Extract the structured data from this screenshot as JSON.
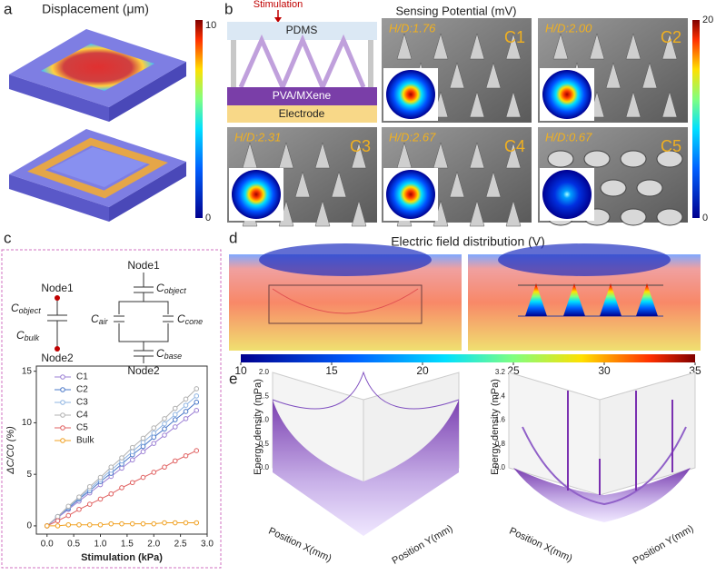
{
  "panel_a": {
    "label": "a",
    "title": "Displacement (μm)",
    "colorbar_max": "10",
    "colorbar_min": "0"
  },
  "panel_b": {
    "label": "b",
    "stimulation": "Stimulation",
    "layers": [
      "PDMS",
      "PVA/MXene",
      "Electrode"
    ],
    "title": "Sensing Potential (mV)",
    "colorbar_max": "20",
    "colorbar_min": "0",
    "images": [
      {
        "hd": "H/D:1.76",
        "name": "C1"
      },
      {
        "hd": "H/D:2.00",
        "name": "C2"
      },
      {
        "hd": "H/D:2.31",
        "name": "C3"
      },
      {
        "hd": "H/D:2.67",
        "name": "C4"
      },
      {
        "hd": "H/D:0.67",
        "name": "C5"
      }
    ]
  },
  "panel_c": {
    "label": "c",
    "node1": "Node1",
    "node2": "Node2",
    "cap": "C",
    "subs": {
      "object": "object",
      "bulk": "bulk",
      "air": "air",
      "cone": "cone",
      "base": "base"
    }
  },
  "panel_d": {
    "label": "d",
    "title": "Electric field distribution (V)",
    "colorbar_ticks": [
      10,
      15,
      20,
      25,
      30,
      35
    ]
  },
  "panel_e": {
    "label": "e",
    "zlabel": "Energy density (mPa)",
    "xlabel": "Position X(mm)",
    "ylabel": "Position Y(mm)",
    "left_zticks": [
      "0.0",
      "0.5",
      "1.0",
      "1.5",
      "2.0"
    ],
    "right_zticks": [
      "0.0",
      "0.8",
      "1.6",
      "2.4",
      "3.2"
    ]
  },
  "chart_data": {
    "type": "line",
    "xlabel": "Stimulation (kPa)",
    "ylabel": "ΔC/C0 (%)",
    "x": [
      0,
      0.2,
      0.4,
      0.6,
      0.8,
      1.0,
      1.2,
      1.4,
      1.6,
      1.8,
      2.0,
      2.2,
      2.4,
      2.6,
      2.8
    ],
    "xlim": [
      -0.2,
      3.0
    ],
    "xticks": [
      {
        "value": 0,
        "label": "0.0"
      },
      0.5,
      {
        "value": 1,
        "label": "1.0"
      },
      1.5,
      {
        "value": 2,
        "label": "2.0"
      },
      2.5,
      {
        "value": 3,
        "label": "3.0"
      }
    ],
    "ylim": [
      -0.8,
      15.5
    ],
    "yticks": [
      0,
      5,
      10,
      15
    ],
    "legend": "upper left",
    "series": [
      {
        "name": "C1",
        "color": "#9b7fd4",
        "values": [
          0,
          0.8,
          1.6,
          2.4,
          3.2,
          4.0,
          4.8,
          5.6,
          6.4,
          7.2,
          8.0,
          8.8,
          9.6,
          10.4,
          11.2
        ]
      },
      {
        "name": "C2",
        "color": "#4a78c8",
        "values": [
          0,
          0.9,
          1.7,
          2.6,
          3.4,
          4.3,
          5.1,
          6.0,
          6.9,
          7.7,
          8.6,
          9.4,
          10.3,
          11.1,
          12.0
        ]
      },
      {
        "name": "C3",
        "color": "#8fb4e2",
        "values": [
          0,
          0.9,
          1.8,
          2.7,
          3.6,
          4.5,
          5.4,
          6.3,
          7.2,
          8.1,
          9.0,
          9.9,
          10.8,
          11.7,
          12.6
        ]
      },
      {
        "name": "C4",
        "color": "#b0b0b0",
        "values": [
          0,
          0.9,
          1.9,
          2.8,
          3.8,
          4.7,
          5.7,
          6.6,
          7.6,
          8.5,
          9.5,
          10.4,
          11.4,
          12.3,
          13.3
        ]
      },
      {
        "name": "C5",
        "color": "#e06060",
        "values": [
          0,
          0.5,
          1.0,
          1.6,
          2.1,
          2.6,
          3.1,
          3.7,
          4.2,
          4.7,
          5.2,
          5.7,
          6.3,
          6.8,
          7.3
        ]
      },
      {
        "name": "Bulk",
        "color": "#f0a020",
        "values": [
          0,
          0,
          0.1,
          0.1,
          0.1,
          0.1,
          0.2,
          0.2,
          0.2,
          0.2,
          0.2,
          0.3,
          0.3,
          0.3,
          0.3
        ]
      }
    ]
  }
}
